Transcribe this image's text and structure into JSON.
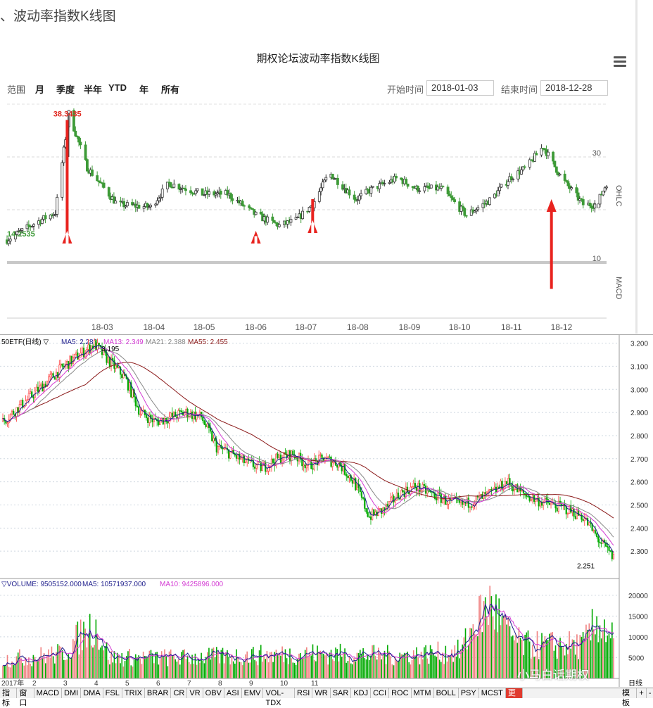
{
  "header": {
    "title": "、波动率指数K线图"
  },
  "chart1": {
    "title": "期权论坛波动率指数K线图",
    "range_label": "范围",
    "range_buttons": [
      "月",
      "季度",
      "半年",
      "YTD",
      "年",
      "所有"
    ],
    "start_label": "开始时间",
    "start_value": "2018-01-03",
    "end_label": "结束时间",
    "end_value": "2018-12-28",
    "y_axis_name": "OHLC",
    "macd_label": "MACD",
    "max_label": "38.3435",
    "min_label": "14.2535",
    "colors": {
      "up": "#333333",
      "down": "#3d9a37",
      "max": "#e0261e",
      "min": "#3d9a37",
      "arrow": "#e8231f"
    }
  },
  "chart2": {
    "legend_name": "50ETF(日线) ▽",
    "legend_ma": [
      "MA5: 2.286",
      "MA13: 2.349",
      "MA21: 2.388",
      "MA55: 2.455"
    ],
    "high_label": "3.195",
    "low_label": "2.251",
    "vol_legend": [
      "▽VOLUME: 9505152.000",
      "MA5: 10571937.000",
      "MA10: 9425896.000"
    ],
    "x_months": [
      "2017年",
      "2",
      "3",
      "4",
      "5",
      "6",
      "7",
      "8",
      "9",
      "10",
      "11"
    ],
    "toolbar": [
      "指标",
      "窗口",
      "MACD",
      "DMI",
      "DMA",
      "FSL",
      "TRIX",
      "BRAR",
      "CR",
      "VR",
      "OBV",
      "ASI",
      "EMV",
      "VOL-TDX",
      "RSI",
      "WR",
      "SAR",
      "KDJ",
      "CCI",
      "ROC",
      "MTM",
      "BOLL",
      "PSY",
      "MCST",
      "更多"
    ],
    "toolbar_right": [
      "模板",
      "+",
      "-"
    ],
    "corner_label": "日线",
    "watermark": "小马白话期权",
    "colors": {
      "up": "#ff3b3b",
      "down": "#00aa00",
      "ma5": "#1e1e8c",
      "ma13": "#d33ad3",
      "ma21": "#888888",
      "ma55": "#8b1a1a"
    }
  },
  "chart_data": [
    {
      "type": "candlestick",
      "title": "期权论坛波动率指数K线图",
      "ylabel": "OHLC",
      "x_ticks": [
        "18-03",
        "18-04",
        "18-05",
        "18-06",
        "18-07",
        "18-08",
        "18-09",
        "18-10",
        "18-11",
        "18-12"
      ],
      "y_ticks": [
        10,
        20,
        30
      ],
      "ylim": [
        10,
        40
      ],
      "annotations": {
        "max": 38.3435,
        "min": 14.2535
      },
      "key_points": [
        [
          "2018-01-03",
          14.3
        ],
        [
          "2018-01-20",
          17.5
        ],
        [
          "2018-02-01",
          19.5
        ],
        [
          "2018-02-09",
          38.3
        ],
        [
          "2018-02-20",
          28
        ],
        [
          "2018-03-10",
          21
        ],
        [
          "2018-03-30",
          20.5
        ],
        [
          "2018-04-10",
          25
        ],
        [
          "2018-04-30",
          23
        ],
        [
          "2018-05-15",
          23
        ],
        [
          "2018-06-01",
          19
        ],
        [
          "2018-06-15",
          17
        ],
        [
          "2018-06-25",
          18
        ],
        [
          "2018-07-05",
          21
        ],
        [
          "2018-07-15",
          27
        ],
        [
          "2018-07-31",
          22
        ],
        [
          "2018-08-10",
          24
        ],
        [
          "2018-08-25",
          26
        ],
        [
          "2018-09-05",
          24
        ],
        [
          "2018-09-20",
          24
        ],
        [
          "2018-10-05",
          19
        ],
        [
          "2018-10-20",
          22
        ],
        [
          "2018-10-31",
          26
        ],
        [
          "2018-11-10",
          28
        ],
        [
          "2018-11-20",
          32
        ],
        [
          "2018-12-01",
          26
        ],
        [
          "2018-12-14",
          21
        ],
        [
          "2018-12-22",
          21
        ],
        [
          "2018-12-28",
          25
        ]
      ]
    },
    {
      "type": "candlestick",
      "title": "50ETF(日线)",
      "y_ticks": [
        2.3,
        2.4,
        2.5,
        2.6,
        2.7,
        2.8,
        2.9,
        3.0,
        3.1,
        3.2
      ],
      "ylim": [
        2.2,
        3.22
      ],
      "annotations": {
        "high": 3.195,
        "low": 2.251
      },
      "key_points": [
        [
          0,
          2.86
        ],
        [
          20,
          2.98
        ],
        [
          40,
          3.1
        ],
        [
          50,
          3.15
        ],
        [
          60,
          3.195
        ],
        [
          70,
          3.12
        ],
        [
          80,
          3.05
        ],
        [
          90,
          2.9
        ],
        [
          100,
          2.86
        ],
        [
          110,
          2.88
        ],
        [
          120,
          2.9
        ],
        [
          130,
          2.88
        ],
        [
          140,
          2.75
        ],
        [
          150,
          2.72
        ],
        [
          160,
          2.68
        ],
        [
          170,
          2.66
        ],
        [
          180,
          2.7
        ],
        [
          190,
          2.72
        ],
        [
          200,
          2.67
        ],
        [
          210,
          2.7
        ],
        [
          220,
          2.68
        ],
        [
          230,
          2.6
        ],
        [
          240,
          2.45
        ],
        [
          250,
          2.48
        ],
        [
          260,
          2.55
        ],
        [
          270,
          2.58
        ],
        [
          280,
          2.55
        ],
        [
          290,
          2.52
        ],
        [
          300,
          2.5
        ],
        [
          310,
          2.52
        ],
        [
          320,
          2.55
        ],
        [
          330,
          2.6
        ],
        [
          340,
          2.55
        ],
        [
          350,
          2.52
        ],
        [
          360,
          2.5
        ],
        [
          370,
          2.48
        ],
        [
          380,
          2.45
        ],
        [
          390,
          2.35
        ],
        [
          400,
          2.27
        ]
      ]
    },
    {
      "type": "bar",
      "title": "VOLUME",
      "y_ticks": [
        5000,
        10000,
        15000,
        20000
      ],
      "ylim": [
        0,
        22000
      ],
      "key_points": [
        [
          0,
          4500
        ],
        [
          40,
          6000
        ],
        [
          50,
          10000
        ],
        [
          60,
          13000
        ],
        [
          70,
          5000
        ],
        [
          120,
          5000
        ],
        [
          200,
          6000
        ],
        [
          260,
          5500
        ],
        [
          300,
          6500
        ],
        [
          310,
          14000
        ],
        [
          320,
          18000
        ],
        [
          330,
          11000
        ],
        [
          340,
          8000
        ],
        [
          380,
          8000
        ],
        [
          390,
          14000
        ],
        [
          400,
          9500
        ]
      ]
    }
  ]
}
